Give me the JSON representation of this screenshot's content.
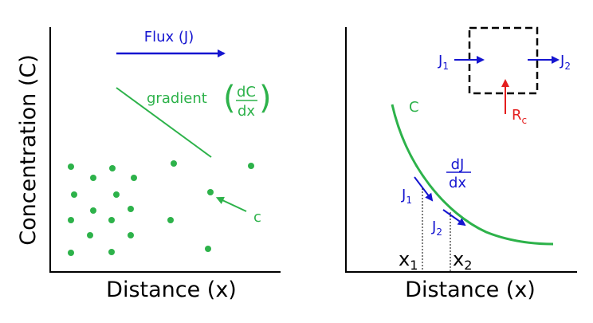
{
  "colors": {
    "axis": "#000000",
    "green": "#2db24a",
    "blue": "#1515d0",
    "red": "#e41e1e"
  },
  "left_panel": {
    "ylabel": "Concentration (C)",
    "xlabel": "Distance (x)",
    "flux_label": "Flux (J)",
    "gradient_label": "gradient",
    "gradient_num": "dC",
    "gradient_den": "dx",
    "particle_label": "c"
  },
  "right_panel": {
    "xlabel": "Distance (x)",
    "curve_label": "C",
    "box": {
      "j_in": "J",
      "j_in_sub": "1",
      "j_out": "J",
      "j_out_sub": "2",
      "source": "R",
      "source_sub": "c"
    },
    "deriv_num": "dJ",
    "deriv_den": "dx",
    "j1": "J",
    "j1_sub": "1",
    "j2": "J",
    "j2_sub": "2",
    "x1": "x",
    "x1_sub": "1",
    "x2": "x",
    "x2_sub": "2"
  }
}
